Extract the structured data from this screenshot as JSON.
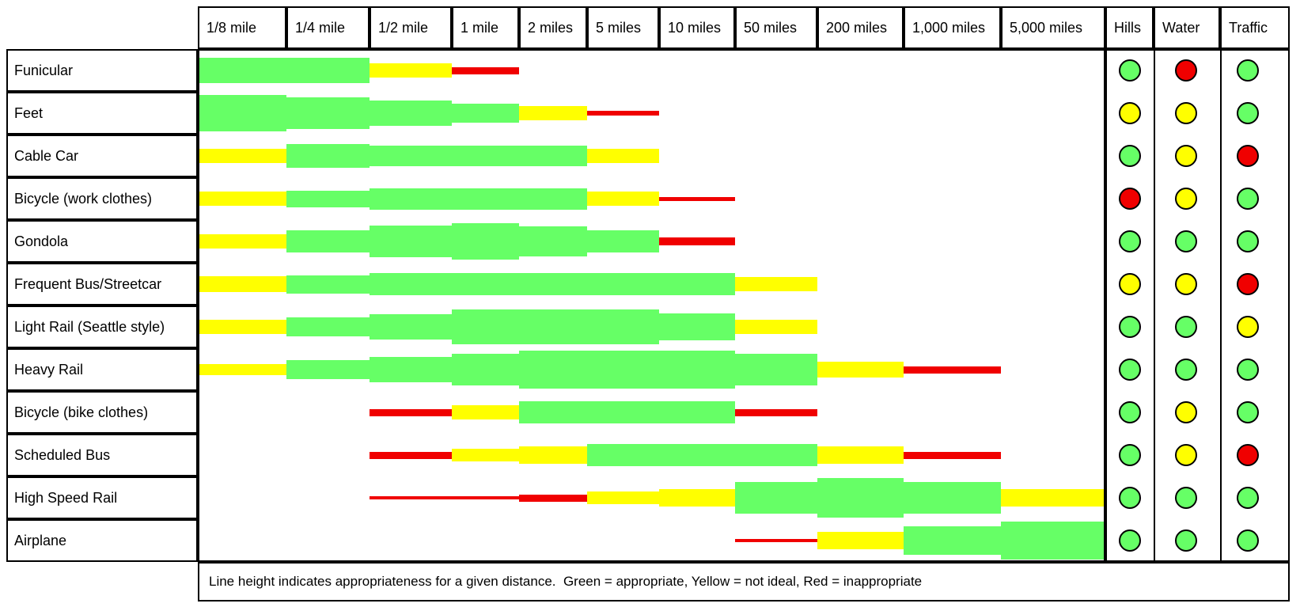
{
  "colors": {
    "green": "#66FF66",
    "yellow": "#FFFF00",
    "red": "#F00000",
    "border": "#000000"
  },
  "header": {
    "distance_columns": [
      "1/8 mile",
      "1/4 mile",
      "1/2 mile",
      "1 mile",
      "2 miles",
      "5 miles",
      "10 miles",
      "50 miles",
      "200 miles",
      "1,000 miles",
      "5,000 miles"
    ],
    "environment_columns": [
      "Hills",
      "Water",
      "Traffic"
    ]
  },
  "footer": {
    "note": "Line height indicates appropriateness for a given distance.  Green = appropriate, Yellow = not ideal, Red = inappropriate"
  },
  "rows": [
    {
      "label": "Funicular",
      "segments": [
        {
          "from": 0,
          "to": 2,
          "color": "green",
          "thickness": 32
        },
        {
          "from": 2,
          "to": 3,
          "color": "yellow",
          "thickness": 18
        },
        {
          "from": 3,
          "to": 4,
          "color": "red",
          "thickness": 9
        }
      ],
      "circles": [
        "green",
        "red",
        "green"
      ]
    },
    {
      "label": "Feet",
      "segments": [
        {
          "from": 0,
          "to": 1,
          "color": "green",
          "thickness": 46
        },
        {
          "from": 1,
          "to": 2,
          "color": "green",
          "thickness": 40
        },
        {
          "from": 2,
          "to": 3,
          "color": "green",
          "thickness": 32
        },
        {
          "from": 3,
          "to": 4,
          "color": "green",
          "thickness": 24
        },
        {
          "from": 4,
          "to": 5,
          "color": "yellow",
          "thickness": 18
        },
        {
          "from": 5,
          "to": 6,
          "color": "red",
          "thickness": 6
        }
      ],
      "circles": [
        "yellow",
        "yellow",
        "green"
      ]
    },
    {
      "label": "Cable Car",
      "segments": [
        {
          "from": 0,
          "to": 1,
          "color": "yellow",
          "thickness": 18
        },
        {
          "from": 1,
          "to": 2,
          "color": "green",
          "thickness": 30
        },
        {
          "from": 2,
          "to": 5,
          "color": "green",
          "thickness": 26
        },
        {
          "from": 5,
          "to": 6,
          "color": "yellow",
          "thickness": 18
        }
      ],
      "circles": [
        "green",
        "yellow",
        "red"
      ]
    },
    {
      "label": "Bicycle (work clothes)",
      "segments": [
        {
          "from": 0,
          "to": 1,
          "color": "yellow",
          "thickness": 18
        },
        {
          "from": 1,
          "to": 2,
          "color": "green",
          "thickness": 21
        },
        {
          "from": 2,
          "to": 5,
          "color": "green",
          "thickness": 27
        },
        {
          "from": 5,
          "to": 6,
          "color": "yellow",
          "thickness": 18
        },
        {
          "from": 6,
          "to": 7,
          "color": "red",
          "thickness": 5
        }
      ],
      "circles": [
        "red",
        "yellow",
        "green"
      ]
    },
    {
      "label": "Gondola",
      "segments": [
        {
          "from": 0,
          "to": 1,
          "color": "yellow",
          "thickness": 18
        },
        {
          "from": 1,
          "to": 2,
          "color": "green",
          "thickness": 28
        },
        {
          "from": 2,
          "to": 3,
          "color": "green",
          "thickness": 40
        },
        {
          "from": 3,
          "to": 4,
          "color": "green",
          "thickness": 46
        },
        {
          "from": 4,
          "to": 5,
          "color": "green",
          "thickness": 38
        },
        {
          "from": 5,
          "to": 6,
          "color": "green",
          "thickness": 28
        },
        {
          "from": 6,
          "to": 7,
          "color": "red",
          "thickness": 10
        }
      ],
      "circles": [
        "green",
        "green",
        "green"
      ]
    },
    {
      "label": "Frequent Bus/Streetcar",
      "segments": [
        {
          "from": 0,
          "to": 1,
          "color": "yellow",
          "thickness": 20
        },
        {
          "from": 1,
          "to": 2,
          "color": "green",
          "thickness": 23
        },
        {
          "from": 2,
          "to": 7,
          "color": "green",
          "thickness": 28
        },
        {
          "from": 7,
          "to": 8,
          "color": "yellow",
          "thickness": 18
        }
      ],
      "circles": [
        "yellow",
        "yellow",
        "red"
      ]
    },
    {
      "label": "Light Rail (Seattle style)",
      "segments": [
        {
          "from": 0,
          "to": 1,
          "color": "yellow",
          "thickness": 18
        },
        {
          "from": 1,
          "to": 2,
          "color": "green",
          "thickness": 24
        },
        {
          "from": 2,
          "to": 3,
          "color": "green",
          "thickness": 32
        },
        {
          "from": 3,
          "to": 6,
          "color": "green",
          "thickness": 44
        },
        {
          "from": 6,
          "to": 7,
          "color": "green",
          "thickness": 34
        },
        {
          "from": 7,
          "to": 8,
          "color": "yellow",
          "thickness": 18
        }
      ],
      "circles": [
        "green",
        "green",
        "yellow"
      ]
    },
    {
      "label": "Heavy Rail",
      "segments": [
        {
          "from": 0,
          "to": 1,
          "color": "yellow",
          "thickness": 14
        },
        {
          "from": 1,
          "to": 2,
          "color": "green",
          "thickness": 24
        },
        {
          "from": 2,
          "to": 3,
          "color": "green",
          "thickness": 32
        },
        {
          "from": 3,
          "to": 4,
          "color": "green",
          "thickness": 40
        },
        {
          "from": 4,
          "to": 7,
          "color": "green",
          "thickness": 48
        },
        {
          "from": 7,
          "to": 8,
          "color": "green",
          "thickness": 40
        },
        {
          "from": 8,
          "to": 9,
          "color": "yellow",
          "thickness": 20
        },
        {
          "from": 9,
          "to": 10,
          "color": "red",
          "thickness": 9
        }
      ],
      "circles": [
        "green",
        "green",
        "green"
      ]
    },
    {
      "label": "Bicycle (bike clothes)",
      "segments": [
        {
          "from": 2,
          "to": 3,
          "color": "red",
          "thickness": 9
        },
        {
          "from": 3,
          "to": 4,
          "color": "yellow",
          "thickness": 18
        },
        {
          "from": 4,
          "to": 7,
          "color": "green",
          "thickness": 28
        },
        {
          "from": 7,
          "to": 8,
          "color": "red",
          "thickness": 9
        }
      ],
      "circles": [
        "green",
        "yellow",
        "green"
      ]
    },
    {
      "label": "Scheduled Bus",
      "segments": [
        {
          "from": 2,
          "to": 3,
          "color": "red",
          "thickness": 9
        },
        {
          "from": 3,
          "to": 4,
          "color": "yellow",
          "thickness": 16
        },
        {
          "from": 4,
          "to": 5,
          "color": "yellow",
          "thickness": 22
        },
        {
          "from": 5,
          "to": 8,
          "color": "green",
          "thickness": 28
        },
        {
          "from": 8,
          "to": 9,
          "color": "yellow",
          "thickness": 22
        },
        {
          "from": 9,
          "to": 10,
          "color": "red",
          "thickness": 9
        }
      ],
      "circles": [
        "green",
        "yellow",
        "red"
      ]
    },
    {
      "label": "High Speed Rail",
      "segments": [
        {
          "from": 2,
          "to": 4,
          "color": "red",
          "thickness": 4
        },
        {
          "from": 4,
          "to": 5,
          "color": "red",
          "thickness": 9
        },
        {
          "from": 5,
          "to": 6,
          "color": "yellow",
          "thickness": 16
        },
        {
          "from": 6,
          "to": 7,
          "color": "yellow",
          "thickness": 22
        },
        {
          "from": 7,
          "to": 8,
          "color": "green",
          "thickness": 40
        },
        {
          "from": 8,
          "to": 9,
          "color": "green",
          "thickness": 50
        },
        {
          "from": 9,
          "to": 10,
          "color": "green",
          "thickness": 40
        },
        {
          "from": 10,
          "to": 11,
          "color": "yellow",
          "thickness": 22
        }
      ],
      "circles": [
        "green",
        "green",
        "green"
      ]
    },
    {
      "label": "Airplane",
      "segments": [
        {
          "from": 7,
          "to": 8,
          "color": "red",
          "thickness": 4
        },
        {
          "from": 8,
          "to": 9,
          "color": "yellow",
          "thickness": 22
        },
        {
          "from": 9,
          "to": 10,
          "color": "green",
          "thickness": 36
        },
        {
          "from": 10,
          "to": 11,
          "color": "green",
          "thickness": 48
        }
      ],
      "circles": [
        "green",
        "green",
        "green"
      ]
    }
  ],
  "chart_data": {
    "type": "table",
    "title": "Transportation mode appropriateness by distance",
    "categories": [
      "1/8 mile",
      "1/4 mile",
      "1/2 mile",
      "1 mile",
      "2 miles",
      "5 miles",
      "10 miles",
      "50 miles",
      "200 miles",
      "1,000 miles",
      "5,000 miles"
    ],
    "rating_legend": {
      "G": "appropriate",
      "Y": "not ideal",
      "R": "inappropriate",
      "-": "none"
    },
    "encoding": "Line height indicates appropriateness for a given distance; color gives rating",
    "series": [
      {
        "name": "Funicular",
        "ratings": [
          "G",
          "G",
          "Y",
          "R",
          "-",
          "-",
          "-",
          "-",
          "-",
          "-",
          "-"
        ]
      },
      {
        "name": "Feet",
        "ratings": [
          "G",
          "G",
          "G",
          "G",
          "Y",
          "R",
          "-",
          "-",
          "-",
          "-",
          "-"
        ]
      },
      {
        "name": "Cable Car",
        "ratings": [
          "Y",
          "G",
          "G",
          "G",
          "G",
          "Y",
          "-",
          "-",
          "-",
          "-",
          "-"
        ]
      },
      {
        "name": "Bicycle (work clothes)",
        "ratings": [
          "Y",
          "G",
          "G",
          "G",
          "G",
          "Y",
          "R",
          "-",
          "-",
          "-",
          "-"
        ]
      },
      {
        "name": "Gondola",
        "ratings": [
          "Y",
          "G",
          "G",
          "G",
          "G",
          "G",
          "R",
          "-",
          "-",
          "-",
          "-"
        ]
      },
      {
        "name": "Frequent Bus/Streetcar",
        "ratings": [
          "Y",
          "G",
          "G",
          "G",
          "G",
          "G",
          "G",
          "Y",
          "-",
          "-",
          "-"
        ]
      },
      {
        "name": "Light Rail (Seattle style)",
        "ratings": [
          "Y",
          "G",
          "G",
          "G",
          "G",
          "G",
          "G",
          "Y",
          "-",
          "-",
          "-"
        ]
      },
      {
        "name": "Heavy Rail",
        "ratings": [
          "Y",
          "G",
          "G",
          "G",
          "G",
          "G",
          "G",
          "G",
          "Y",
          "R",
          "-"
        ]
      },
      {
        "name": "Bicycle (bike clothes)",
        "ratings": [
          "-",
          "-",
          "R",
          "Y",
          "G",
          "G",
          "G",
          "R",
          "-",
          "-",
          "-"
        ]
      },
      {
        "name": "Scheduled Bus",
        "ratings": [
          "-",
          "-",
          "R",
          "Y",
          "Y",
          "G",
          "G",
          "G",
          "Y",
          "R",
          "-"
        ]
      },
      {
        "name": "High Speed Rail",
        "ratings": [
          "-",
          "-",
          "R",
          "R",
          "R",
          "Y",
          "Y",
          "G",
          "G",
          "G",
          "Y"
        ]
      },
      {
        "name": "Airplane",
        "ratings": [
          "-",
          "-",
          "-",
          "-",
          "-",
          "-",
          "-",
          "R",
          "Y",
          "G",
          "G"
        ]
      }
    ],
    "environment": {
      "columns": [
        "Hills",
        "Water",
        "Traffic"
      ],
      "ratings": [
        [
          "G",
          "R",
          "G"
        ],
        [
          "Y",
          "Y",
          "G"
        ],
        [
          "G",
          "Y",
          "R"
        ],
        [
          "R",
          "Y",
          "G"
        ],
        [
          "G",
          "G",
          "G"
        ],
        [
          "Y",
          "Y",
          "R"
        ],
        [
          "G",
          "G",
          "Y"
        ],
        [
          "G",
          "G",
          "G"
        ],
        [
          "G",
          "Y",
          "G"
        ],
        [
          "G",
          "Y",
          "R"
        ],
        [
          "G",
          "G",
          "G"
        ],
        [
          "G",
          "G",
          "G"
        ]
      ]
    }
  }
}
